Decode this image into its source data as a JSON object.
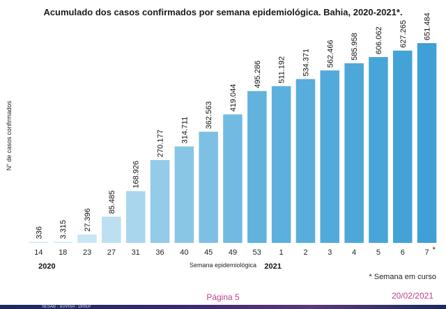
{
  "title": "Acumulado dos casos confirmados por semana epidemiológica. Bahia, 2020-2021*.",
  "note": "* Semana em curso",
  "footer": {
    "page": "Página 5",
    "date": "20/02/2021",
    "logo_text": "SESAB · SUVISA · DIVEP"
  },
  "colors": {
    "light": "#cfe9f5",
    "dark": "#3ea0d6"
  },
  "chart_data": {
    "type": "bar",
    "title": "Acumulado dos casos confirmados por semana epidemiológica. Bahia, 2020-2021*.",
    "xlabel": "Semana epidemiológica",
    "ylabel": "N° de casos confirmados",
    "categories": [
      "14",
      "18",
      "23",
      "27",
      "31",
      "36",
      "40",
      "45",
      "49",
      "53",
      "1",
      "2",
      "3",
      "4",
      "5",
      "6",
      "7"
    ],
    "values": [
      336,
      3315,
      27396,
      85485,
      168926,
      270177,
      314711,
      362563,
      419044,
      495286,
      511192,
      534371,
      562466,
      585958,
      606062,
      627265,
      651484
    ],
    "labels": [
      "336",
      "3.315",
      "27.396",
      "85.485",
      "168.926",
      "270.177",
      "314.711",
      "362.563",
      "419.044",
      "495.286",
      "511.192",
      "534.371",
      "562.466",
      "585.958",
      "606.062",
      "627.265",
      "651.484"
    ],
    "last_tick_mark": "*",
    "year_groups": [
      {
        "label": "2020",
        "start": 0,
        "end": 9
      },
      {
        "label": "2021",
        "start": 10,
        "end": 16
      }
    ],
    "ylim": [
      0,
      651484
    ],
    "grid": false,
    "legend": "none"
  }
}
